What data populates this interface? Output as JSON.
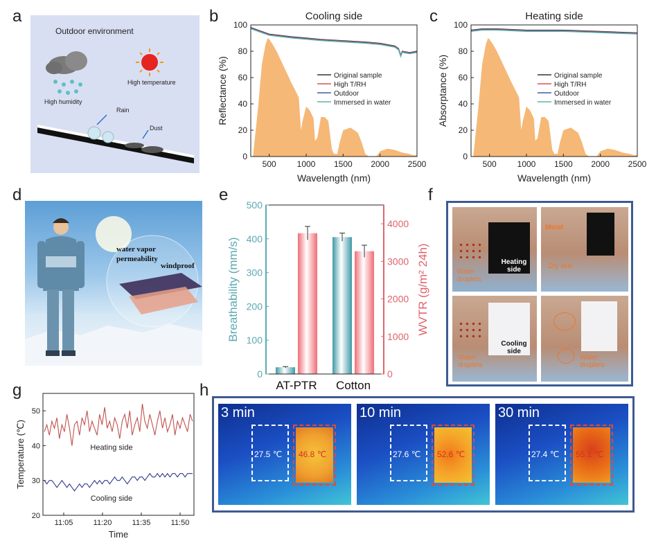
{
  "panels": {
    "a": "a",
    "b": "b",
    "c": "c",
    "d": "d",
    "e": "e",
    "f": "f",
    "g": "g",
    "h": "h"
  },
  "panel_a": {
    "title": "Outdoor environment",
    "labels": [
      "High humidity",
      "High temperature",
      "Rain",
      "Dust"
    ]
  },
  "panel_d": {
    "labels": [
      "water vapor",
      "permeability",
      "windproof"
    ]
  },
  "panel_f": {
    "labels": {
      "water_droplets": "Water droplets",
      "heating_side": "Heating side",
      "moist": "Moist",
      "dry_skin": "Dry skin",
      "cooling_side": "Cooling side",
      "water_droplets_2": "Water droplets",
      "water_droplets_3": "Water droplets"
    }
  },
  "panel_h": {
    "frames": [
      {
        "time": "3 min",
        "cool_temp": "27.5 ℃",
        "hot_temp": "46.8 ℃"
      },
      {
        "time": "10 min",
        "cool_temp": "27.6 ℃",
        "hot_temp": "52.6 ℃"
      },
      {
        "time": "30 min",
        "cool_temp": "27.4 ℃",
        "hot_temp": "55.1 ℃"
      }
    ]
  },
  "chart_data": [
    {
      "id": "b",
      "type": "line",
      "title": "Cooling side",
      "xlabel": "Wavelength (nm)",
      "ylabel": "Reflectance (%)",
      "xlim": [
        250,
        2500
      ],
      "ylim": [
        0,
        100
      ],
      "xticks": [
        500,
        1000,
        1500,
        2000,
        2500
      ],
      "yticks": [
        0,
        20,
        40,
        60,
        80,
        100
      ],
      "legend": [
        "Original sample",
        "High T/RH",
        "Outdoor",
        "Immersed in water"
      ],
      "legend_colors": [
        "#333333",
        "#d9534f",
        "#3b5ba9",
        "#5fb3a8"
      ],
      "series": [
        {
          "name": "Original sample",
          "x": [
            250,
            300,
            400,
            500,
            800,
            1000,
            1200,
            1500,
            1800,
            2000,
            2200,
            2250,
            2280,
            2300,
            2400,
            2500
          ],
          "y": [
            98,
            97,
            95,
            93,
            91,
            90,
            89,
            88,
            87,
            86,
            84,
            82,
            77,
            80,
            79,
            80
          ]
        }
      ],
      "solar_spectrum": {
        "x": [
          280,
          350,
          400,
          450,
          480,
          500,
          550,
          600,
          700,
          800,
          900,
          930,
          950,
          1000,
          1050,
          1100,
          1120,
          1150,
          1200,
          1250,
          1300,
          1350,
          1380,
          1420,
          1450,
          1500,
          1600,
          1700,
          1750,
          1800,
          1850,
          1950,
          2000,
          2100,
          2200,
          2300,
          2400,
          2450,
          2500
        ],
        "y": [
          0,
          38,
          70,
          85,
          90,
          89,
          85,
          80,
          68,
          56,
          45,
          20,
          27,
          38,
          35,
          29,
          12,
          14,
          30,
          30,
          27,
          5,
          2,
          2,
          10,
          20,
          22,
          18,
          11,
          2,
          0,
          0,
          4,
          6,
          5,
          3,
          2,
          1,
          1
        ]
      }
    },
    {
      "id": "c",
      "type": "line",
      "title": "Heating side",
      "xlabel": "Wavelength (nm)",
      "ylabel": "Absorptance (%)",
      "xlim": [
        250,
        2500
      ],
      "ylim": [
        0,
        100
      ],
      "xticks": [
        500,
        1000,
        1500,
        2000,
        2500
      ],
      "yticks": [
        0,
        20,
        40,
        60,
        80,
        100
      ],
      "legend": [
        "Original sample",
        "High T/RH",
        "Outdoor",
        "Immersed in water"
      ],
      "legend_colors": [
        "#333333",
        "#d9534f",
        "#3b5ba9",
        "#5fb3a8"
      ],
      "series": [
        {
          "name": "Original sample",
          "x": [
            250,
            400,
            600,
            1000,
            1500,
            2000,
            2500
          ],
          "y": [
            96,
            97,
            97,
            96,
            96,
            95,
            94
          ]
        }
      ],
      "solar_spectrum": {
        "x": [
          280,
          350,
          400,
          450,
          480,
          500,
          550,
          600,
          700,
          800,
          900,
          930,
          950,
          1000,
          1050,
          1100,
          1120,
          1150,
          1200,
          1250,
          1300,
          1350,
          1380,
          1420,
          1450,
          1500,
          1600,
          1700,
          1750,
          1800,
          1850,
          1950,
          2000,
          2100,
          2200,
          2300,
          2400,
          2450,
          2500
        ],
        "y": [
          0,
          38,
          70,
          85,
          90,
          89,
          85,
          80,
          68,
          56,
          45,
          20,
          27,
          38,
          35,
          29,
          12,
          14,
          30,
          30,
          27,
          5,
          2,
          2,
          10,
          20,
          22,
          18,
          11,
          2,
          0,
          0,
          4,
          6,
          5,
          3,
          2,
          1,
          1
        ]
      }
    },
    {
      "id": "e",
      "type": "bar",
      "categories": [
        "AT-PTR",
        "Cotton"
      ],
      "series": [
        {
          "name": "Breathability",
          "axis": "left",
          "unit": "mm/s",
          "values": [
            20,
            405
          ],
          "errors": [
            2,
            12
          ],
          "color": "#6db7be"
        },
        {
          "name": "WVTR",
          "axis": "right",
          "unit": "g/m2 24h",
          "values": [
            3750,
            3270
          ],
          "errors": [
            180,
            160
          ],
          "color": "#f08a8f"
        }
      ],
      "ylabel_left": "Breathability (mm/s)",
      "ylim_left": [
        0,
        500
      ],
      "yticks_left": [
        0,
        100,
        200,
        300,
        400,
        500
      ],
      "ylabel_right": "WVTR (g/m² 24h)",
      "ylim_right": [
        0,
        4500
      ],
      "yticks_right": [
        0,
        1000,
        2000,
        3000,
        4000
      ]
    },
    {
      "id": "g",
      "type": "line",
      "xlabel": "Time",
      "ylabel": "Temperature (℃)",
      "xticks": [
        "11:05",
        "11:20",
        "11:35",
        "11:50"
      ],
      "ylim": [
        20,
        55
      ],
      "yticks": [
        20,
        30,
        40,
        50
      ],
      "series": [
        {
          "name": "Heating side",
          "color": "#c0504d",
          "y": [
            44,
            46,
            43,
            47,
            45,
            48,
            42,
            46,
            44,
            49,
            45,
            40,
            46,
            47,
            43,
            48,
            46,
            50,
            44,
            47,
            45,
            43,
            49,
            46,
            51,
            45,
            47,
            44,
            48,
            46,
            42,
            47,
            49,
            45,
            50,
            43,
            46,
            48,
            44,
            52,
            47,
            45,
            49,
            46,
            43,
            47,
            50,
            45,
            48,
            44,
            46,
            49,
            43,
            47,
            45,
            48,
            46,
            44,
            49,
            47
          ]
        },
        {
          "name": "Cooling side",
          "color": "#2e3a8c",
          "y": [
            30,
            29,
            30,
            30,
            29,
            28,
            29,
            30,
            29,
            28,
            29,
            28,
            27,
            28,
            29,
            28,
            29,
            29,
            28,
            29,
            30,
            29,
            30,
            29,
            30,
            30,
            29,
            30,
            31,
            30,
            30,
            31,
            30,
            29,
            30,
            31,
            31,
            30,
            31,
            31,
            30,
            31,
            32,
            31,
            31,
            32,
            31,
            32,
            31,
            32,
            31,
            32,
            32,
            31,
            32,
            32,
            31,
            32,
            32,
            32
          ]
        }
      ],
      "annotations": [
        "Heating side",
        "Cooling side"
      ]
    }
  ]
}
